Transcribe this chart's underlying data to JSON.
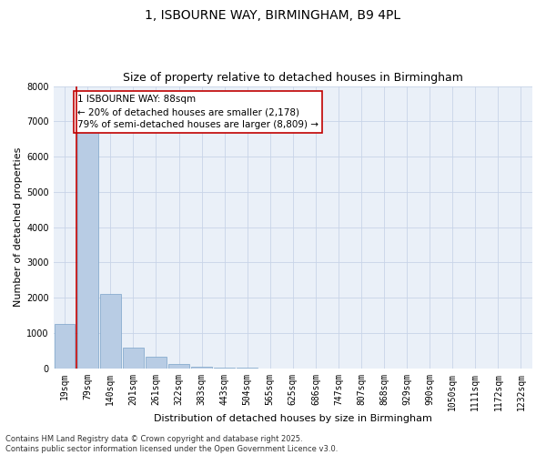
{
  "title_line1": "1, ISBOURNE WAY, BIRMINGHAM, B9 4PL",
  "title_line2": "Size of property relative to detached houses in Birmingham",
  "xlabel": "Distribution of detached houses by size in Birmingham",
  "ylabel": "Number of detached properties",
  "categories": [
    "19sqm",
    "79sqm",
    "140sqm",
    "201sqm",
    "261sqm",
    "322sqm",
    "383sqm",
    "443sqm",
    "504sqm",
    "565sqm",
    "625sqm",
    "686sqm",
    "747sqm",
    "807sqm",
    "868sqm",
    "929sqm",
    "990sqm",
    "1050sqm",
    "1111sqm",
    "1172sqm",
    "1232sqm"
  ],
  "values": [
    1250,
    6700,
    2100,
    600,
    320,
    130,
    60,
    20,
    10,
    0,
    0,
    0,
    0,
    0,
    0,
    0,
    0,
    0,
    0,
    0,
    0
  ],
  "bar_color": "#b8cce4",
  "bar_edge_color": "#7ba3c8",
  "vline_color": "#c00000",
  "vline_x": 0.5,
  "annotation_text": "1 ISBOURNE WAY: 88sqm\n← 20% of detached houses are smaller (2,178)\n79% of semi-detached houses are larger (8,809) →",
  "annotation_box_color": "#c00000",
  "ylim": [
    0,
    8000
  ],
  "yticks": [
    0,
    1000,
    2000,
    3000,
    4000,
    5000,
    6000,
    7000,
    8000
  ],
  "background_color": "#ffffff",
  "plot_bg_color": "#eaf0f8",
  "grid_color": "#c8d4e8",
  "footer_text": "Contains HM Land Registry data © Crown copyright and database right 2025.\nContains public sector information licensed under the Open Government Licence v3.0.",
  "title_fontsize": 10,
  "subtitle_fontsize": 9,
  "axis_label_fontsize": 8,
  "tick_fontsize": 7,
  "annotation_fontsize": 7.5
}
